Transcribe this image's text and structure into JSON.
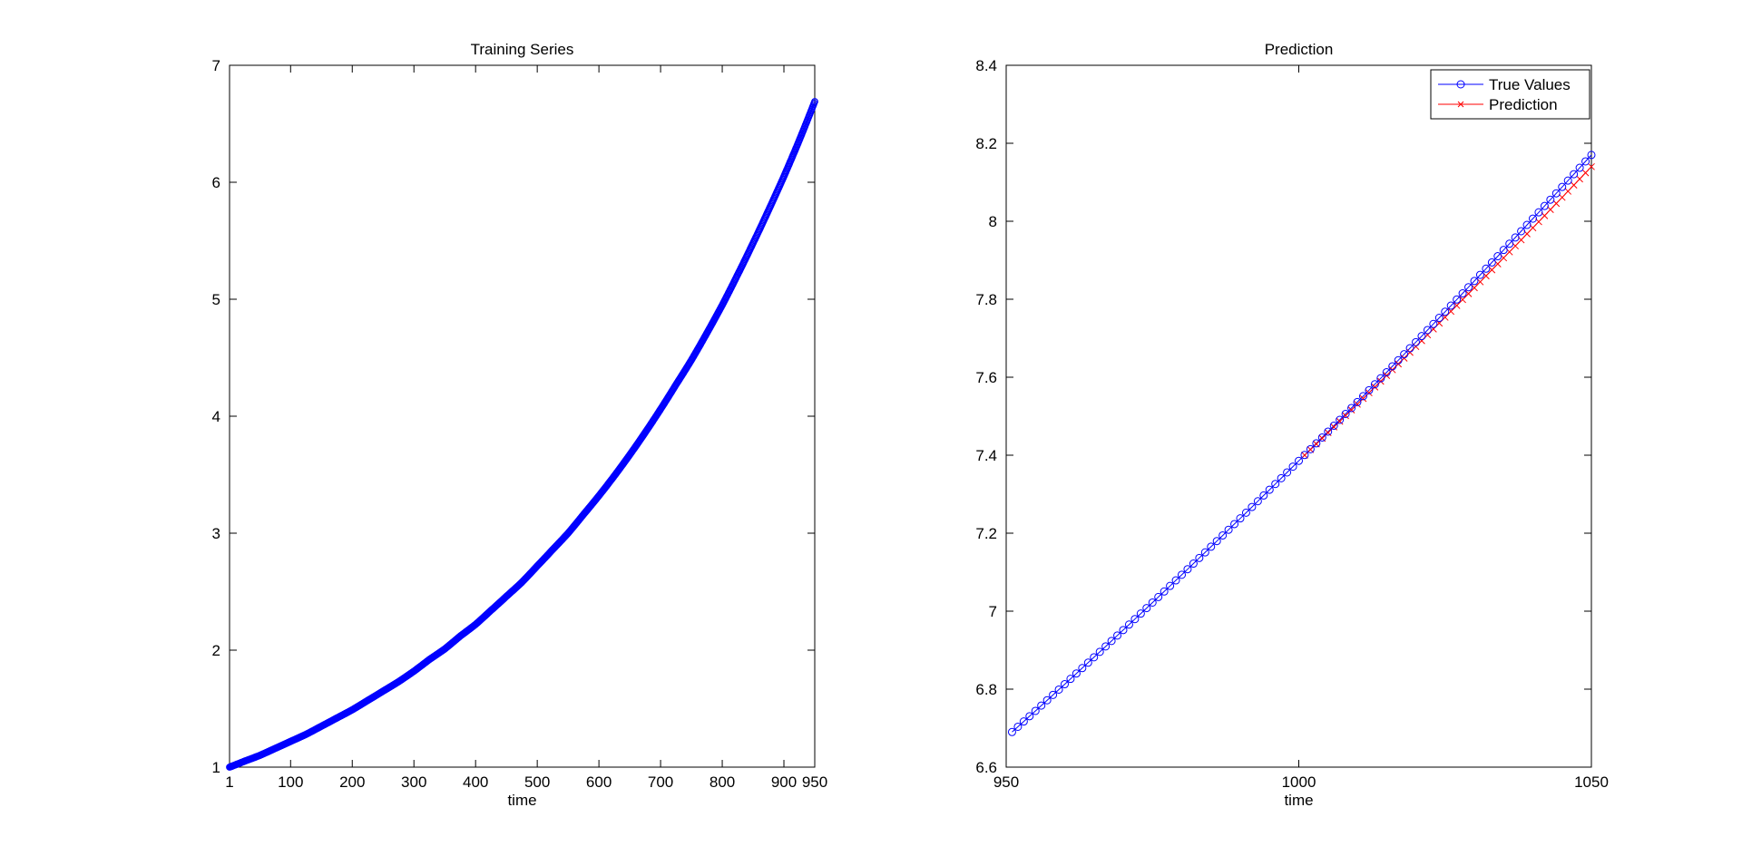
{
  "chart_data": [
    {
      "type": "scatter",
      "title": "Training Series",
      "xlabel": "time",
      "ylabel": "",
      "xlim": [
        1,
        950
      ],
      "ylim": [
        1,
        7
      ],
      "xticks": [
        1,
        100,
        200,
        300,
        400,
        500,
        600,
        700,
        800,
        900,
        950
      ],
      "xtick_labels": [
        "1",
        "100",
        "200",
        "300",
        "400",
        "500",
        "600",
        "700",
        "800",
        "900",
        "950"
      ],
      "yticks": [
        1,
        2,
        3,
        4,
        5,
        6,
        7
      ],
      "ytick_labels": [
        "1",
        "2",
        "3",
        "4",
        "5",
        "6",
        "7"
      ],
      "grid": false,
      "series": [
        {
          "marker": "circle",
          "color": "#0000ff",
          "x": [
            1,
            25,
            50,
            75,
            100,
            125,
            150,
            175,
            200,
            225,
            250,
            275,
            300,
            325,
            350,
            375,
            400,
            425,
            450,
            475,
            500,
            525,
            550,
            575,
            600,
            625,
            650,
            675,
            700,
            725,
            750,
            775,
            800,
            825,
            850,
            875,
            900,
            925,
            950
          ],
          "y": [
            1.0,
            1.05,
            1.1,
            1.16,
            1.22,
            1.28,
            1.35,
            1.42,
            1.49,
            1.57,
            1.65,
            1.73,
            1.82,
            1.92,
            2.01,
            2.12,
            2.22,
            2.34,
            2.46,
            2.58,
            2.72,
            2.86,
            3.0,
            3.16,
            3.32,
            3.49,
            3.67,
            3.86,
            4.06,
            4.27,
            4.48,
            4.71,
            4.95,
            5.21,
            5.48,
            5.76,
            6.05,
            6.36,
            6.69
          ]
        }
      ]
    },
    {
      "type": "line",
      "title": "Prediction",
      "xlabel": "time",
      "ylabel": "",
      "xlim": [
        950,
        1050
      ],
      "ylim": [
        6.6,
        8.4
      ],
      "xticks": [
        950,
        1000,
        1050
      ],
      "xtick_labels": [
        "950",
        "1000",
        "1050"
      ],
      "yticks": [
        6.6,
        6.8,
        7.0,
        7.2,
        7.4,
        7.6,
        7.8,
        8.0,
        8.2,
        8.4
      ],
      "ytick_labels": [
        "6.6",
        "6.8",
        "7",
        "7.2",
        "7.4",
        "7.6",
        "7.8",
        "8",
        "8.2",
        "8.4"
      ],
      "grid": false,
      "legend": "top-right",
      "series": [
        {
          "name": "True Values",
          "marker": "circle",
          "color": "#0000ff",
          "x": [
            951,
            1050
          ],
          "y": [
            6.69,
            8.17
          ]
        },
        {
          "name": "Prediction",
          "marker": "x",
          "color": "#ff0000",
          "x": [
            1001,
            1050
          ],
          "y": [
            7.4,
            8.14
          ]
        }
      ]
    }
  ]
}
